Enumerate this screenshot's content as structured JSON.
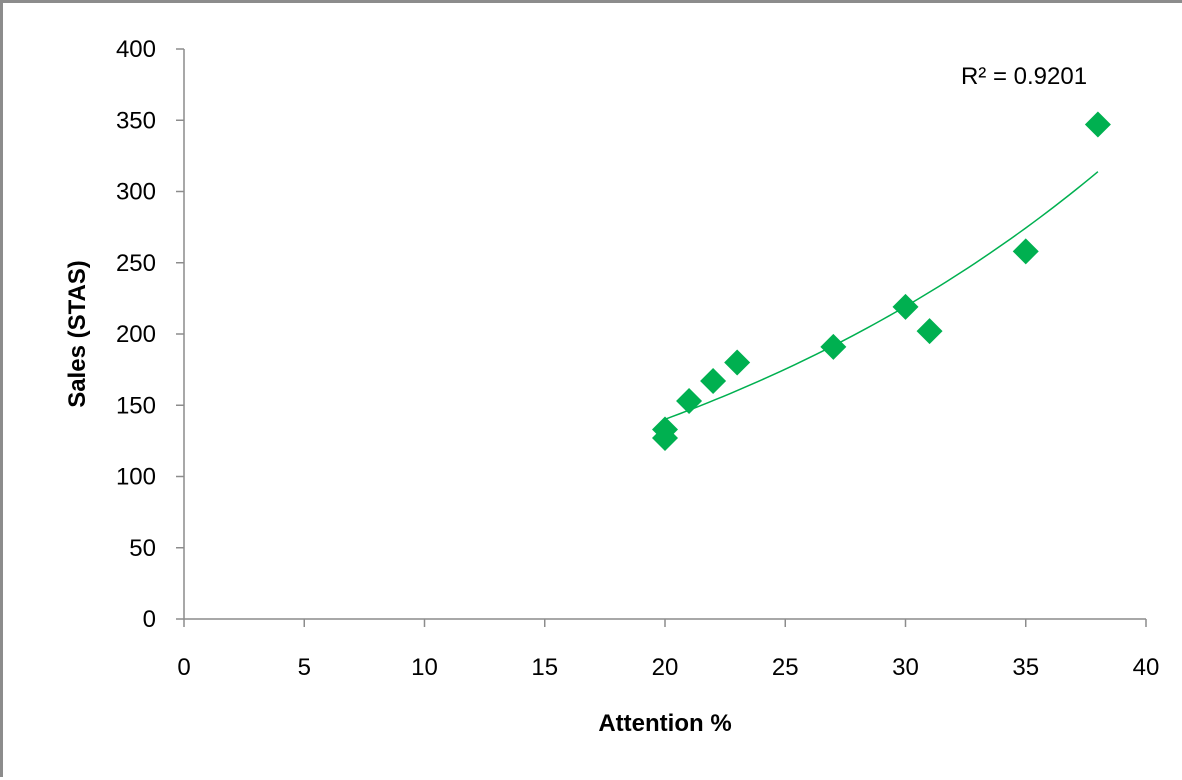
{
  "chart_data": {
    "type": "scatter",
    "title": "",
    "xlabel": "Attention %",
    "ylabel": "Sales (STAS)",
    "xlim": [
      0,
      40
    ],
    "ylim": [
      0,
      400
    ],
    "x_ticks": [
      0,
      5,
      10,
      15,
      20,
      25,
      30,
      35,
      40
    ],
    "y_ticks": [
      0,
      50,
      100,
      150,
      200,
      250,
      300,
      350,
      400
    ],
    "grid": false,
    "legend": "none",
    "marker": "diamond",
    "series": [
      {
        "x": [
          20,
          20,
          21,
          22,
          23,
          27,
          30,
          31,
          35,
          38
        ],
        "y": [
          133,
          127,
          153,
          167,
          180,
          191,
          219,
          202,
          258,
          347
        ],
        "color": "#00b050"
      }
    ],
    "trendline": {
      "type": "exponential",
      "color": "#00b050",
      "x_range": [
        20,
        38
      ],
      "r_squared_label": "R² = 0.9201"
    }
  }
}
